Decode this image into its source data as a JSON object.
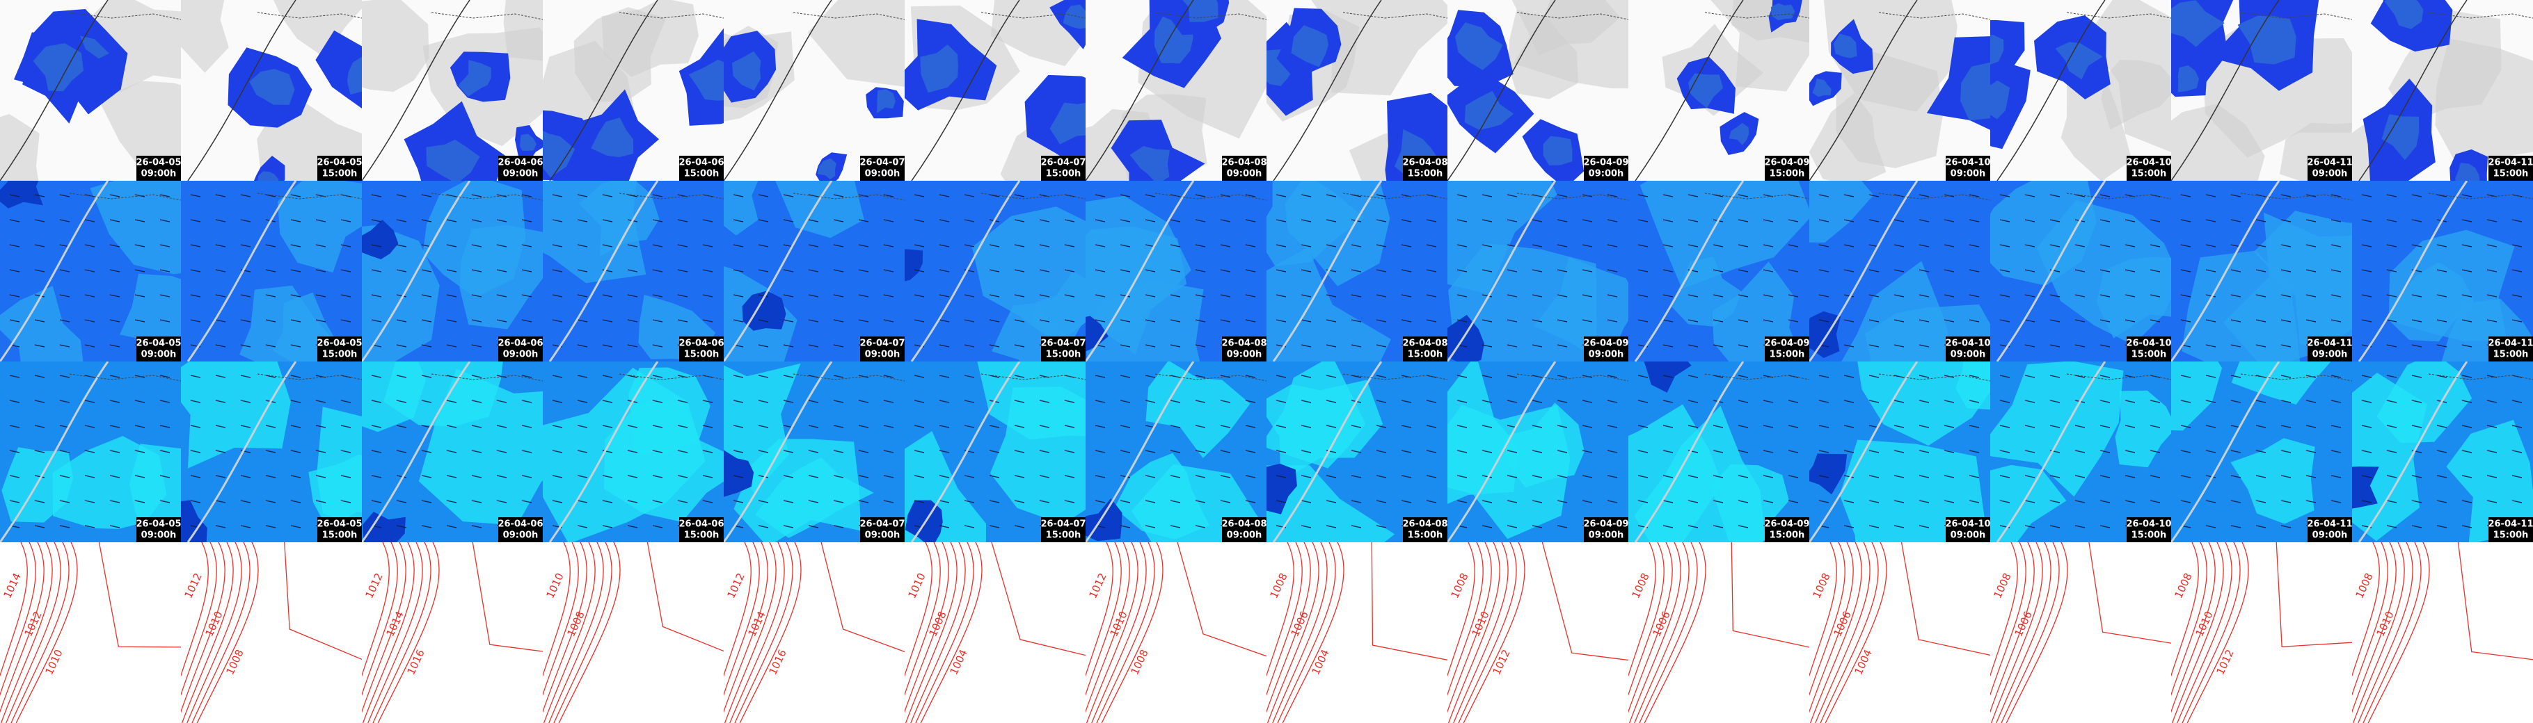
{
  "columns": [
    {
      "date": "26-04-05",
      "time": "09:00h",
      "isobars": [
        "1014",
        "1012",
        "1010"
      ]
    },
    {
      "date": "26-04-05",
      "time": "15:00h",
      "isobars": [
        "1012",
        "1010",
        "1008"
      ]
    },
    {
      "date": "26-04-06",
      "time": "09:00h",
      "isobars": [
        "1012",
        "1014",
        "1016"
      ]
    },
    {
      "date": "26-04-06",
      "time": "15:00h",
      "isobars": [
        "1010",
        "1008"
      ]
    },
    {
      "date": "26-04-07",
      "time": "09:00h",
      "isobars": [
        "1012",
        "1014",
        "1016"
      ]
    },
    {
      "date": "26-04-07",
      "time": "15:00h",
      "isobars": [
        "1010",
        "1008",
        "1004"
      ]
    },
    {
      "date": "26-04-08",
      "time": "09:00h",
      "isobars": [
        "1012",
        "1010",
        "1008"
      ]
    },
    {
      "date": "26-04-08",
      "time": "15:00h",
      "isobars": [
        "1008",
        "1006",
        "1004"
      ]
    },
    {
      "date": "26-04-09",
      "time": "09:00h",
      "isobars": [
        "1008",
        "1010",
        "1012"
      ]
    },
    {
      "date": "26-04-09",
      "time": "15:00h",
      "isobars": [
        "1008",
        "1006"
      ]
    },
    {
      "date": "26-04-10",
      "time": "09:00h",
      "isobars": [
        "1008",
        "1006",
        "1004"
      ]
    },
    {
      "date": "26-04-10",
      "time": "15:00h",
      "isobars": [
        "1008",
        "1006"
      ]
    },
    {
      "date": "26-04-11",
      "time": "09:00h",
      "isobars": [
        "1008",
        "1010",
        "1012"
      ]
    },
    {
      "date": "26-04-11",
      "time": "15:00h",
      "isobars": [
        "1008",
        "1010"
      ]
    }
  ]
}
